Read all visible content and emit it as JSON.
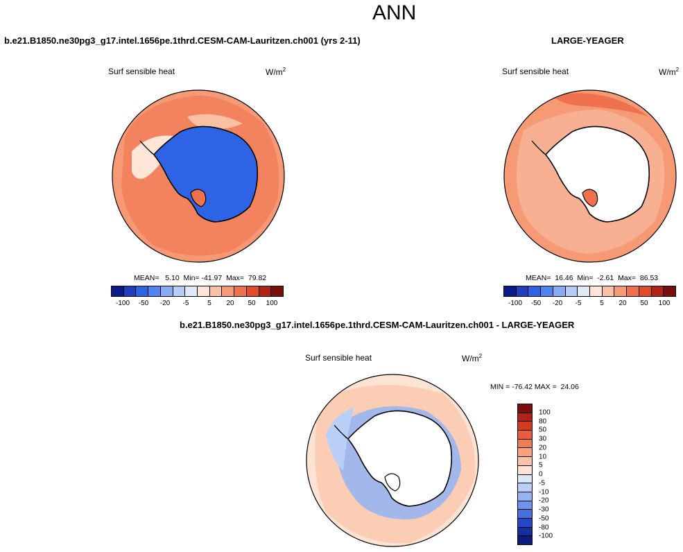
{
  "title": "ANN",
  "panels": [
    {
      "case": "b.e21.B1850.ne30pg3_g17.intel.1656pe.1thrd.CESM-CAM-Lauritzen.ch001 (yrs 2-11)",
      "variable": "Surf sensible heat",
      "units_base": "W/m",
      "units_exp": "2",
      "stats": "MEAN=   5.10  Min= -41.97  Max=  79.82"
    },
    {
      "case": "LARGE-YEAGER",
      "variable": "Surf sensible heat",
      "units_base": "W/m",
      "units_exp": "2",
      "stats": "MEAN=  16.46  Min=  -2.61  Max=  86.53"
    },
    {
      "case": "b.e21.B1850.ne30pg3_g17.intel.1656pe.1thrd.CESM-CAM-Lauritzen.ch001 - LARGE-YEAGER",
      "variable": "Surf sensible heat",
      "units_base": "W/m",
      "units_exp": "2",
      "stats": "MIN = -76.42 MAX =  24.06"
    }
  ],
  "colorbar_levels": [
    "-100",
    "-50",
    "-20",
    "-5",
    "5",
    "20",
    "50",
    "100"
  ],
  "diff_levels": [
    "100",
    "80",
    "50",
    "30",
    "20",
    "10",
    "5",
    "0",
    "-5",
    "-10",
    "-20",
    "-30",
    "-50",
    "-80",
    "-100"
  ],
  "colors": {
    "land": "#ffffff",
    "coast": "#000000",
    "scale": [
      "#0b1a8a",
      "#1f3fc0",
      "#2e63e6",
      "#4f85f2",
      "#86abf5",
      "#b7cdf7",
      "#dfe9f8",
      "#fde6d8",
      "#f9c0a3",
      "#f69a76",
      "#f0714d",
      "#e04b2a",
      "#b12314",
      "#7a0e0a"
    ],
    "diff_scale": [
      "#7a0e0a",
      "#b12314",
      "#d63a1e",
      "#ec5c38",
      "#f27d55",
      "#f7a27f",
      "#fac3a8",
      "#fde3d4",
      "#dbe7fb",
      "#b9cff8",
      "#93b4f3",
      "#6b94ec",
      "#4470e0",
      "#2548c6",
      "#1330a0",
      "#0a1d7e"
    ]
  }
}
